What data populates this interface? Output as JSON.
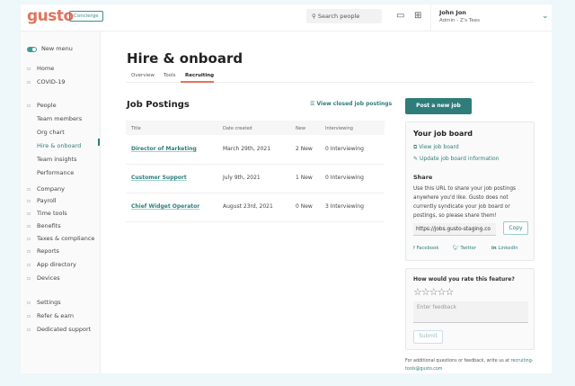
{
  "header": {
    "logo": "gusto",
    "concierge": "Concierge",
    "search_placeholder": "Search people",
    "user_name": "John Jon",
    "user_role": "Admin - Z's Tees"
  },
  "sidebar": {
    "new_menu": "New menu",
    "items": [
      {
        "label": "Home",
        "icon": "home-icon"
      },
      {
        "label": "COVID-19",
        "icon": "flag-icon"
      },
      {
        "label": "People",
        "icon": "people-icon"
      },
      {
        "label": "Team members"
      },
      {
        "label": "Org chart"
      },
      {
        "label": "Hire & onboard",
        "active": true
      },
      {
        "label": "Team insights"
      },
      {
        "label": "Performance"
      },
      {
        "label": "Company",
        "icon": "building-icon"
      },
      {
        "label": "Payroll",
        "icon": "dollar-icon"
      },
      {
        "label": "Time tools",
        "icon": "clock-icon"
      },
      {
        "label": "Benefits",
        "icon": "heart-icon"
      },
      {
        "label": "Taxes & compliance",
        "icon": "list-icon"
      },
      {
        "label": "Reports",
        "icon": "folder-icon"
      },
      {
        "label": "App directory",
        "icon": "grid-icon"
      },
      {
        "label": "Devices",
        "icon": "plus-icon"
      },
      {
        "label": "Settings",
        "icon": "gear-icon"
      },
      {
        "label": "Refer & earn",
        "icon": "gift-icon"
      },
      {
        "label": "Dedicated support",
        "icon": "help-icon"
      }
    ]
  },
  "main": {
    "title": "Hire & onboard",
    "tabs": [
      "Overview",
      "Tools",
      "Recruiting"
    ],
    "active_tab": "Recruiting",
    "section_title": "Job Postings",
    "view_closed": "View closed job postings",
    "columns": [
      "Title",
      "Date created",
      "New",
      "Interviewing"
    ],
    "rows": [
      [
        "Director of Marketing",
        "March 29th, 2021",
        "2 New",
        "0 Interviewing"
      ],
      [
        "Customer Support",
        "July 9th, 2021",
        "1 New",
        "0 Interviewing"
      ],
      [
        "Chief Widget Operator",
        "August 23rd, 2021",
        "0 New",
        "3 Interviewing"
      ]
    ]
  },
  "right": {
    "post_job": "Post a new job",
    "board_title": "Your job board",
    "view_board": "View job board",
    "update_board": "Update job board information",
    "share_title": "Share",
    "share_text": "Use this URL to share your job postings anywhere you'd like. Gusto does not currently syndicate your job board or postings, so please share them!",
    "url": "https://jobs.gusto-staging.co",
    "copy": "Copy",
    "facebook": "Facebook",
    "twitter": "Twitter",
    "linkedin": "LinkedIn",
    "rate_title": "How would you rate this feature?",
    "rating": 0,
    "feedback_placeholder": "Enter feedback",
    "submit": "Submit",
    "footer_text": "For additional questions or feedback, write us at ",
    "footer_email": "recruiting-tools@gusto.com"
  },
  "colors": {
    "brand": "#e0735e",
    "accent": "#2f7d7b"
  }
}
